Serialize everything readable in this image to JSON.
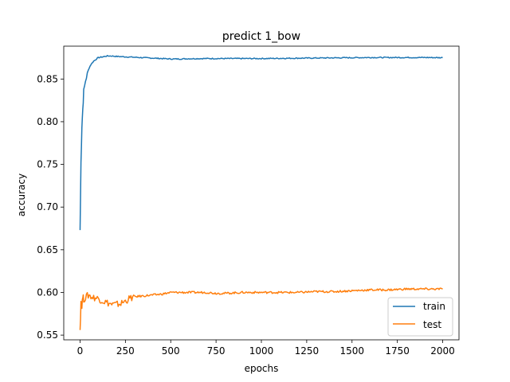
{
  "chart_data": {
    "type": "line",
    "title": "predict 1_bow",
    "xlabel": "epochs",
    "ylabel": "accuracy",
    "xlim": [
      -90,
      2090
    ],
    "ylim": [
      0.5445,
      0.8885
    ],
    "xticks": [
      0,
      250,
      500,
      750,
      1000,
      1250,
      1500,
      1750,
      2000
    ],
    "xtick_labels": [
      "0",
      "250",
      "500",
      "750",
      "1000",
      "1250",
      "1500",
      "1750",
      "2000"
    ],
    "yticks": [
      0.55,
      0.6,
      0.65,
      0.7,
      0.75,
      0.8,
      0.85
    ],
    "ytick_labels": [
      "0.55",
      "0.60",
      "0.65",
      "0.70",
      "0.75",
      "0.80",
      "0.85"
    ],
    "grid": false,
    "legend_position": "lower-right",
    "series": [
      {
        "name": "train",
        "color": "#1f77b4",
        "x": [
          0,
          5,
          10,
          15,
          20,
          30,
          40,
          50,
          60,
          75,
          100,
          125,
          150,
          175,
          200,
          250,
          300,
          350,
          400,
          450,
          500,
          550,
          600,
          700,
          800,
          900,
          1000,
          1100,
          1200,
          1300,
          1400,
          1500,
          1600,
          1700,
          1800,
          1900,
          2000
        ],
        "y": [
          0.673,
          0.752,
          0.795,
          0.815,
          0.835,
          0.848,
          0.857,
          0.863,
          0.867,
          0.871,
          0.875,
          0.876,
          0.877,
          0.877,
          0.8765,
          0.876,
          0.8755,
          0.875,
          0.8745,
          0.874,
          0.8735,
          0.8735,
          0.8738,
          0.874,
          0.874,
          0.874,
          0.874,
          0.8742,
          0.8744,
          0.8746,
          0.8748,
          0.875,
          0.8752,
          0.8752,
          0.8752,
          0.8752,
          0.875
        ]
      },
      {
        "name": "test",
        "color": "#ff7f0e",
        "x": [
          0,
          5,
          10,
          15,
          20,
          30,
          40,
          50,
          60,
          75,
          100,
          125,
          150,
          175,
          200,
          225,
          250,
          275,
          300,
          350,
          400,
          450,
          500,
          550,
          600,
          650,
          700,
          750,
          800,
          900,
          1000,
          1100,
          1200,
          1300,
          1400,
          1500,
          1600,
          1700,
          1800,
          1900,
          2000
        ],
        "y": [
          0.556,
          0.59,
          0.585,
          0.595,
          0.592,
          0.594,
          0.596,
          0.597,
          0.595,
          0.594,
          0.593,
          0.59,
          0.588,
          0.586,
          0.586,
          0.587,
          0.59,
          0.593,
          0.595,
          0.596,
          0.597,
          0.598,
          0.6,
          0.6,
          0.6,
          0.6,
          0.6,
          0.599,
          0.599,
          0.6,
          0.6,
          0.6,
          0.6,
          0.601,
          0.601,
          0.602,
          0.603,
          0.603,
          0.604,
          0.604,
          0.604
        ]
      }
    ]
  }
}
